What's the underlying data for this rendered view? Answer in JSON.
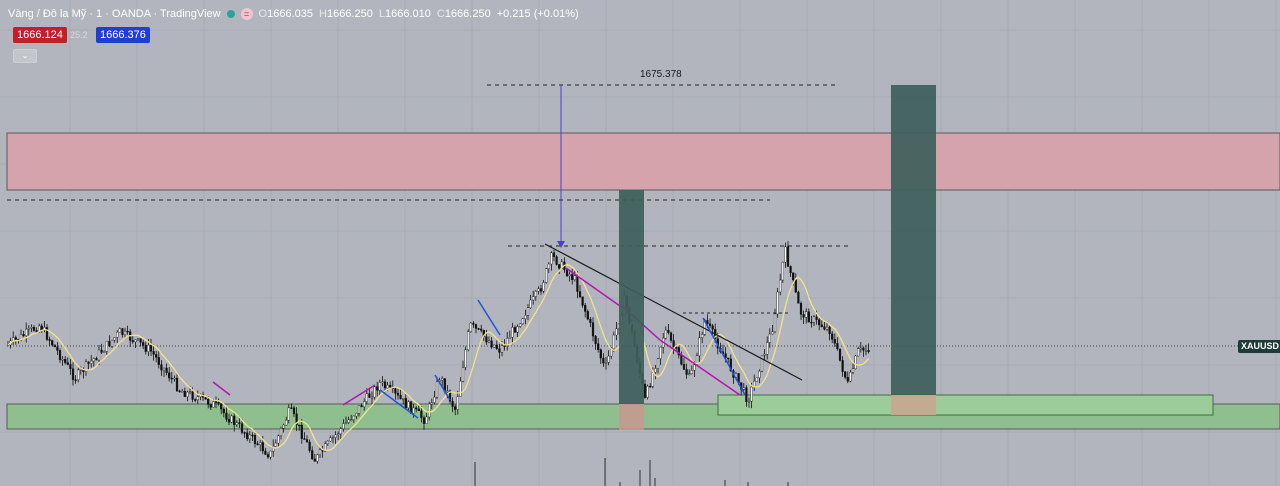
{
  "header": {
    "symbol": "Vàng / Đô la Mỹ · 1 · OANDA · TradingView",
    "ohlc": {
      "o_label": "O",
      "o": "1666.035",
      "h_label": "H",
      "h": "1666.250",
      "l_label": "L",
      "l": "1666.010",
      "c_label": "C",
      "c": "1666.250",
      "change": "+0.215 (+0.01%)"
    },
    "sell_price": "1666.124",
    "spread": "25.2",
    "buy_price": "1666.376"
  },
  "colors": {
    "background": "#b2b5be",
    "resistance_zone": "#d4a3ab",
    "support_zone": "#8fbf8f",
    "position_box": "#3e5e5a",
    "sma": "#f2e28a",
    "down_swing": "#1e55d6",
    "up_swing": "#b316b0",
    "sell_box": "#c41e2a",
    "buy_box": "#1f3fd0"
  },
  "symbol_tag": "XAUUSD",
  "measure_label": "1675.378",
  "chart_data": {
    "type": "line",
    "price_label": "XAUUSD",
    "last_price": 1666.25,
    "measure_level": 1675.378,
    "resistance_zone": [
      1672.5,
      1671.0
    ],
    "support_zone": [
      1663.9,
      1663.2
    ],
    "grid": true
  }
}
